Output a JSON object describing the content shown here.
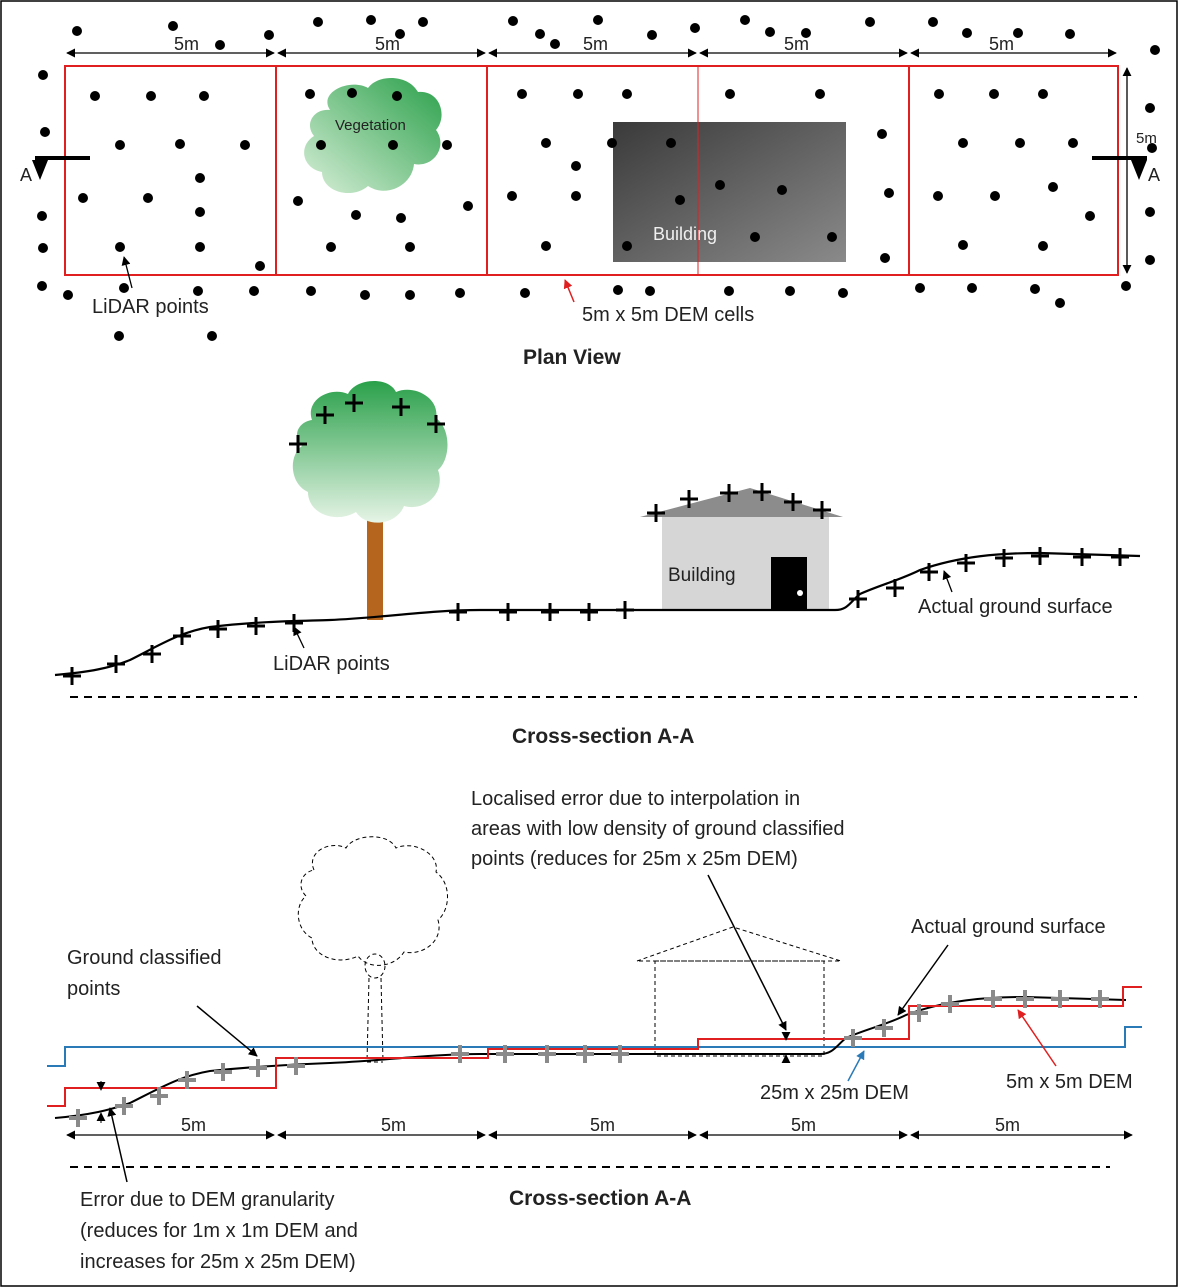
{
  "plan_view": {
    "title": "Plan View",
    "cell_width_labels": [
      "5m",
      "5m",
      "5m",
      "5m",
      "5m"
    ],
    "cell_height_label": "5m",
    "section_marker_left": "A",
    "section_marker_right": "A",
    "vegetation_label": "Vegetation",
    "building_label": "Building",
    "lidar_points_label": "LiDAR points",
    "dem_cells_label": "5m x 5m DEM cells"
  },
  "cross_section_1": {
    "title": "Cross-section A-A",
    "building_label": "Building",
    "ground_label": "Actual ground surface",
    "lidar_points_label": "LiDAR points"
  },
  "cross_section_2": {
    "title": "Cross-section A-A",
    "interp_error_lines": [
      "Localised error due to interpolation in",
      "areas with low density of ground classified",
      "points (reduces for 25m x 25m DEM)"
    ],
    "ground_classified_lines": [
      "Ground classified",
      "points"
    ],
    "ground_label": "Actual ground surface",
    "dem25_label": "25m x 25m DEM",
    "dem5_label": "5m x 5m DEM",
    "cell_width_labels": [
      "5m",
      "5m",
      "5m",
      "5m",
      "5m"
    ],
    "granularity_error_lines": [
      "Error due to DEM granularity",
      "(reduces for 1m x 1m DEM and",
      "increases for 25m x 25m DEM)"
    ]
  },
  "colors": {
    "dem5": "#e02020",
    "dem25": "#2a7ab8",
    "vegetation_dark": "#2aa04a",
    "vegetation_light": "#d8efd8",
    "trunk": "#b5651d",
    "building_dark": "#3a3a3a",
    "building_light": "#8a8a8a",
    "house_wall": "#d6d6d6",
    "roof": "#8c8c8c",
    "ground_point_gray": "#8a8a8a"
  }
}
